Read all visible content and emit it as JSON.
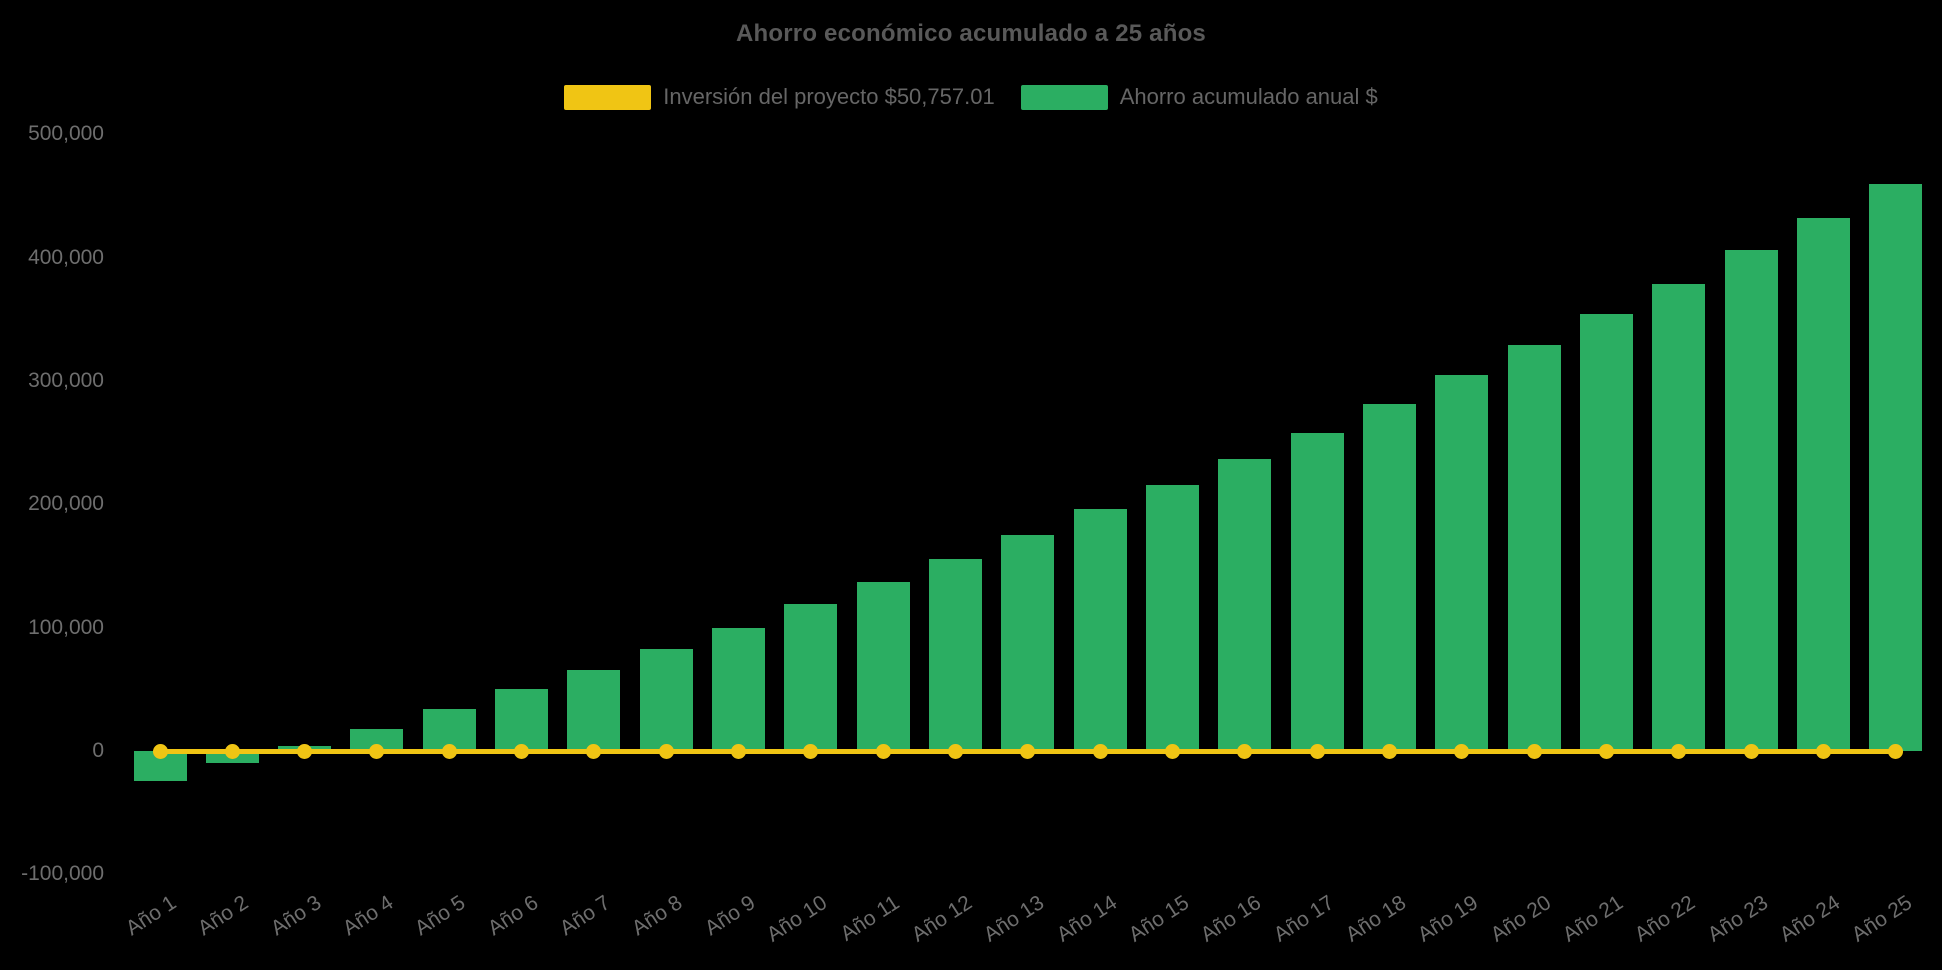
{
  "page": {
    "background": "#000000"
  },
  "chart_data": {
    "type": "bar",
    "title": "Ahorro económico acumulado a 25 años",
    "categories": [
      "Año 1",
      "Año 2",
      "Año 3",
      "Año 4",
      "Año 5",
      "Año 6",
      "Año 7",
      "Año 8",
      "Año 9",
      "Año 10",
      "Año 11",
      "Año 12",
      "Año 13",
      "Año 14",
      "Año 15",
      "Año 16",
      "Año 17",
      "Año 18",
      "Año 19",
      "Año 20",
      "Año 21",
      "Año 22",
      "Año 23",
      "Año 24",
      "Año 25"
    ],
    "series": [
      {
        "name": "Inversión del proyecto $50,757.01",
        "type": "line",
        "color": "#f0c514",
        "investment_value": 50757.01,
        "plotted_at_y": 0,
        "marker": "circle"
      },
      {
        "name": "Ahorro acumulado anual $",
        "type": "column",
        "color": "#2bae62",
        "values": [
          -24000,
          -10000,
          4000,
          18000,
          34000,
          50000,
          66000,
          83000,
          100000,
          119000,
          137000,
          156000,
          175000,
          196000,
          216000,
          237000,
          258000,
          281000,
          305000,
          329000,
          354000,
          379000,
          406000,
          432000,
          460000
        ]
      }
    ],
    "yticks": {
      "values": [
        500000,
        400000,
        300000,
        200000,
        100000,
        0,
        -100000
      ],
      "labels": [
        "500,000",
        "400,000",
        "300,000",
        "200,000",
        "100,000",
        "0",
        "-100,000"
      ]
    },
    "ylim": [
      -100000,
      500000
    ],
    "xlabel": "",
    "ylabel": "",
    "grid": false,
    "legend_position": "top",
    "title_color": "#595959",
    "label_color": "#6e6e6e"
  }
}
